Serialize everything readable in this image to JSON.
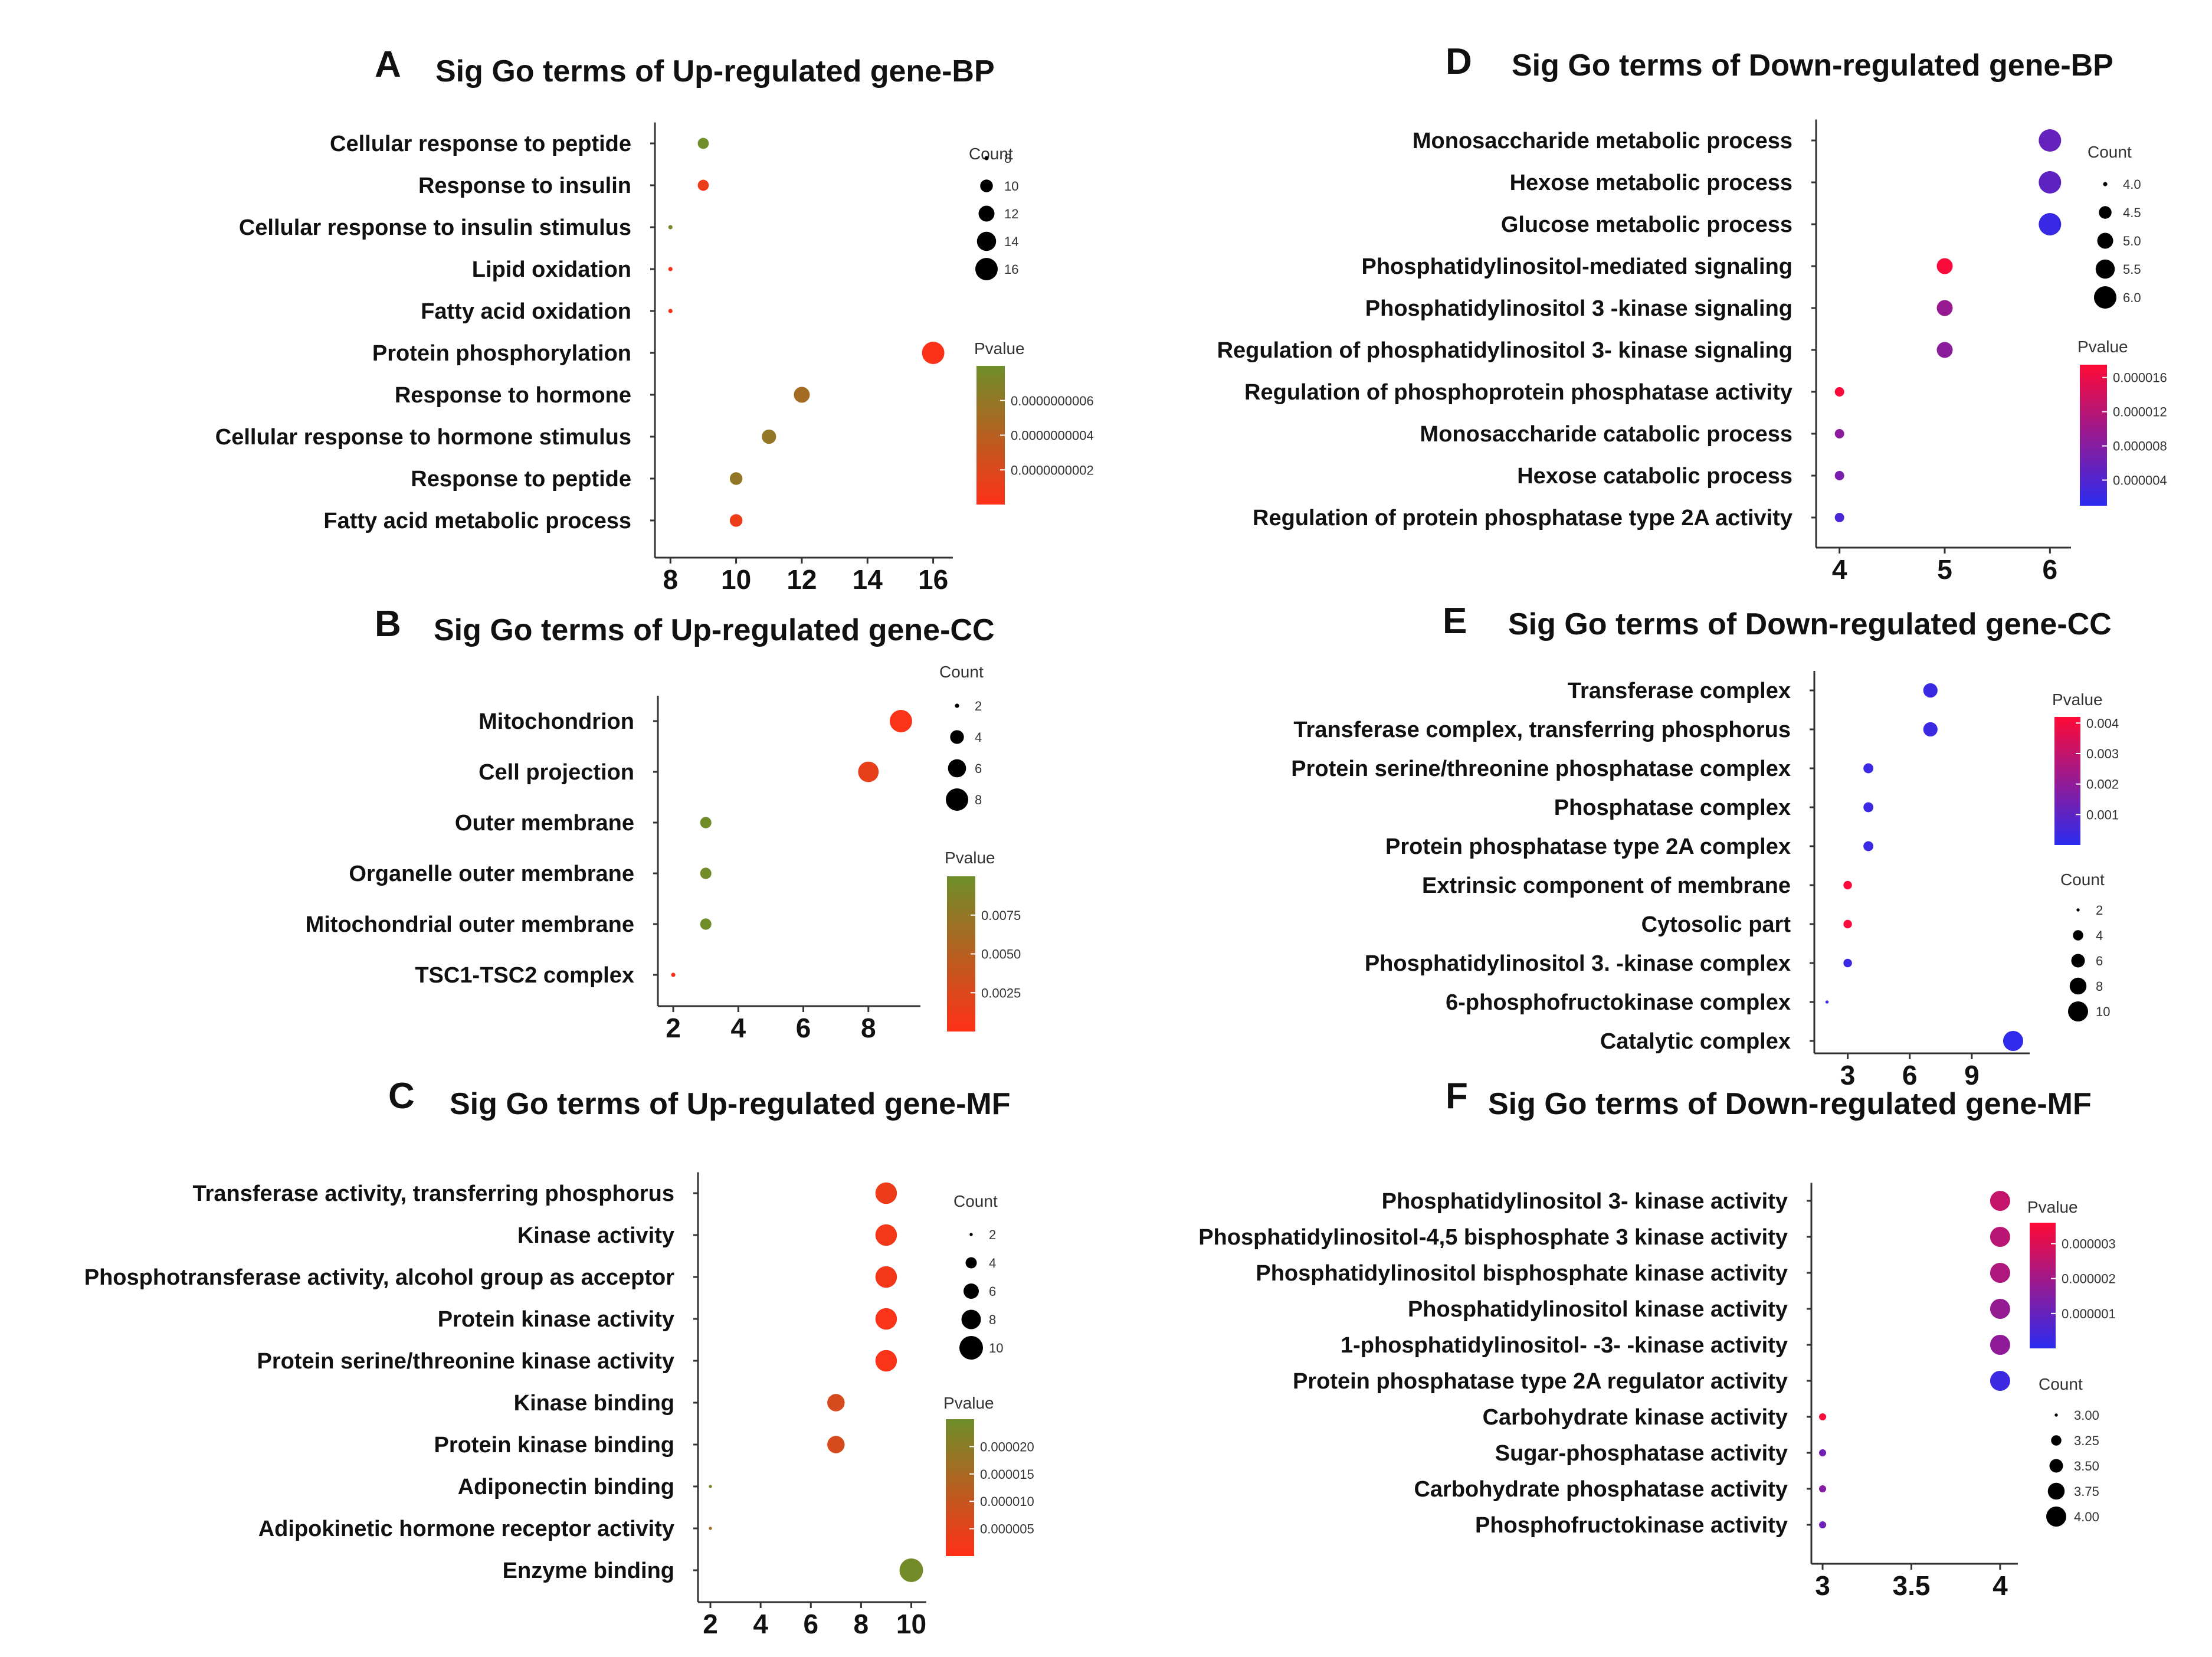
{
  "chart_data": [
    {
      "id": "A",
      "type": "scatter",
      "letter": "A",
      "title": "Sig Go terms of Up-regulated gene-BP",
      "terms": [
        "Cellular response to peptide",
        "Response to insulin",
        "Cellular response to insulin stimulus",
        "Lipid oxidation",
        "Fatty acid oxidation",
        "Protein phosphorylation",
        "Response to hormone",
        "Cellular response to hormone stimulus",
        "Response to peptide",
        "Fatty acid metabolic process"
      ],
      "x": [
        9,
        9,
        8,
        8,
        8,
        16,
        12,
        11,
        10,
        10
      ],
      "pvalue": [
        8e-10,
        1e-10,
        7e-10,
        1e-11,
        1e-11,
        2e-11,
        5e-10,
        6e-10,
        6e-10,
        1e-10
      ],
      "xlim": [
        7.6,
        16.6
      ],
      "xticks": [
        "8",
        "10",
        "12",
        "14",
        "16"
      ],
      "xtick_values": [
        8,
        10,
        12,
        14,
        16
      ],
      "count_legend": {
        "title": "Count",
        "labels": [
          "8",
          "10",
          "12",
          "14",
          "16"
        ],
        "values": [
          8,
          10,
          12,
          14,
          16
        ],
        "range": [
          8,
          16
        ]
      },
      "pvalue_legend": {
        "title": "Pvalue",
        "labels": [
          "0.0000000006",
          "0.0000000004",
          "0.0000000002"
        ],
        "values": [
          6e-10,
          4e-10,
          2e-10
        ],
        "range": [
          0,
          8e-10
        ],
        "colors": [
          "#ff3018",
          "#6e8f2a"
        ]
      }
    },
    {
      "id": "B",
      "type": "scatter",
      "letter": "B",
      "title": "Sig Go terms of Up-regulated gene-CC",
      "terms": [
        "Mitochondrion",
        "Cell projection",
        "Outer membrane",
        "Organelle outer membrane",
        "Mitochondrial outer membrane",
        "TSC1-TSC2 complex"
      ],
      "x": [
        9,
        8,
        3,
        3,
        3,
        2
      ],
      "pvalue": [
        0.0003,
        0.0016,
        0.0098,
        0.0098,
        0.0098,
        0.0001
      ],
      "xlim": [
        1.6,
        9.6
      ],
      "xticks": [
        "2",
        "4",
        "6",
        "8"
      ],
      "xtick_values": [
        2,
        4,
        6,
        8
      ],
      "count_legend": {
        "title": "Count",
        "labels": [
          "2",
          "4",
          "6",
          "8"
        ],
        "values": [
          2,
          4,
          6,
          8
        ],
        "range": [
          2,
          9
        ]
      },
      "pvalue_legend": {
        "title": "Pvalue",
        "labels": [
          "0.0075",
          "0.0050",
          "0.0025"
        ],
        "values": [
          0.0075,
          0.005,
          0.0025
        ],
        "range": [
          0,
          0.01
        ],
        "colors": [
          "#ff3018",
          "#6e8f2a"
        ]
      }
    },
    {
      "id": "C",
      "type": "scatter",
      "letter": "C",
      "title": "Sig Go terms of Up-regulated gene-MF",
      "terms": [
        "Transferase activity, transferring phosphorus",
        "Kinase activity",
        "Phosphotransferase activity, alcohol group as acceptor",
        "Protein kinase activity",
        "Protein serine/threonine kinase activity",
        "Kinase binding",
        "Protein kinase binding",
        "Adiponectin binding",
        "Adipokinetic hormone receptor activity",
        "Enzyme binding"
      ],
      "x": [
        9,
        9,
        9,
        9,
        9,
        7,
        7,
        2,
        2,
        10
      ],
      "pvalue": [
        3e-06,
        2e-06,
        2e-06,
        1e-06,
        1e-06,
        7e-06,
        7e-06,
        2.2e-05,
        1.5e-05,
        2.4e-05
      ],
      "xlim": [
        1.6,
        10.6
      ],
      "xticks": [
        "2",
        "4",
        "6",
        "8",
        "10"
      ],
      "xtick_values": [
        2,
        4,
        6,
        8,
        10
      ],
      "count_legend": {
        "title": "Count",
        "labels": [
          "2",
          "4",
          "6",
          "8",
          "10"
        ],
        "values": [
          2,
          4,
          6,
          8,
          10
        ],
        "range": [
          2,
          10
        ]
      },
      "pvalue_legend": {
        "title": "Pvalue",
        "labels": [
          "0.000020",
          "0.000015",
          "0.000010",
          "0.000005"
        ],
        "values": [
          2e-05,
          1.5e-05,
          1e-05,
          5e-06
        ],
        "range": [
          0,
          2.5e-05
        ],
        "colors": [
          "#ff3018",
          "#6e8f2a"
        ]
      }
    },
    {
      "id": "D",
      "type": "scatter",
      "letter": "D",
      "title": "Sig Go terms of Down-regulated gene-BP",
      "terms": [
        "Monosaccharide metabolic process",
        "Hexose metabolic process",
        "Glucose metabolic process",
        "Phosphatidylinositol-mediated signaling",
        "Phosphatidylinositol 3 -kinase signaling",
        "Regulation of phosphatidylinositol 3- kinase signaling",
        "Regulation of phosphoprotein phosphatase activity",
        "Monosaccharide catabolic process",
        "Hexose catabolic process",
        "Regulation of protein phosphatase type 2A activity"
      ],
      "x": [
        6,
        6,
        6,
        5,
        5,
        5,
        4,
        4,
        4,
        4
      ],
      "pvalue": [
        5.5e-06,
        5e-06,
        2e-06,
        1.7e-05,
        9.5e-06,
        8.5e-06,
        1.7e-05,
        8.5e-06,
        7e-06,
        3.5e-06
      ],
      "xlim": [
        3.8,
        6.2
      ],
      "xticks": [
        "4",
        "5",
        "6"
      ],
      "xtick_values": [
        4,
        5,
        6
      ],
      "count_legend": {
        "title": "Count",
        "labels": [
          "4.0",
          "4.5",
          "5.0",
          "5.5",
          "6.0"
        ],
        "values": [
          4,
          4.5,
          5,
          5.5,
          6
        ],
        "range": [
          4,
          6
        ]
      },
      "pvalue_legend": {
        "title": "Pvalue",
        "labels": [
          "0.000016",
          "0.000012",
          "0.000008",
          "0.000004"
        ],
        "values": [
          1.6e-05,
          1.2e-05,
          8e-06,
          4e-06
        ],
        "range": [
          1e-06,
          1.75e-05
        ],
        "colors": [
          "#2b2bf0",
          "#ff0a36"
        ]
      }
    },
    {
      "id": "E",
      "type": "scatter",
      "letter": "E",
      "title": "Sig Go terms of Down-regulated gene-CC",
      "terms": [
        "Transferase complex",
        "Transferase complex, transferring phosphorus",
        "Protein serine/threonine phosphatase complex",
        "Phosphatase complex",
        "Protein phosphatase type 2A complex",
        "Extrinsic component of membrane",
        "Cytosolic part",
        "Phosphatidylinositol 3. -kinase complex",
        "6-phosphofructokinase complex",
        "Catalytic complex"
      ],
      "x": [
        7,
        7,
        4,
        4,
        4,
        3,
        3,
        3,
        2,
        11
      ],
      "pvalue": [
        0.0003,
        0.0003,
        0.0003,
        0.0003,
        0.0003,
        0.0041,
        0.0041,
        0.0003,
        0.0003,
        0.0001
      ],
      "xlim": [
        1.5,
        11.8
      ],
      "xticks": [
        "3",
        "6",
        "9"
      ],
      "xtick_values": [
        3,
        6,
        9
      ],
      "count_legend": {
        "title": "Count",
        "labels": [
          "2",
          "4",
          "6",
          "8",
          "10"
        ],
        "values": [
          2,
          4,
          6,
          8,
          10
        ],
        "range": [
          2,
          11
        ]
      },
      "pvalue_legend": {
        "title": "Pvalue",
        "labels": [
          "0.004",
          "0.003",
          "0.002",
          "0.001"
        ],
        "values": [
          0.004,
          0.003,
          0.002,
          0.001
        ],
        "range": [
          0,
          0.0042
        ],
        "colors": [
          "#2b2bf0",
          "#ff0a36"
        ]
      }
    },
    {
      "id": "F",
      "type": "scatter",
      "letter": "F",
      "title": "Sig Go terms of Down-regulated gene-MF",
      "terms": [
        "Phosphatidylinositol 3- kinase activity",
        "Phosphatidylinositol-4,5 bisphosphate 3 kinase activity",
        "Phosphatidylinositol bisphosphate kinase activity",
        "Phosphatidylinositol kinase activity",
        "1-phosphatidylinositol- -3- -kinase activity",
        "Protein phosphatase type 2A regulator activity",
        "Carbohydrate kinase activity",
        "Sugar-phosphatase activity",
        "Carbohydrate phosphatase activity",
        "Phosphofructokinase activity"
      ],
      "x": [
        4,
        4,
        4,
        4,
        4,
        4,
        3,
        3,
        3,
        3
      ],
      "pvalue": [
        2.6e-06,
        2.4e-06,
        2.2e-06,
        1.8e-06,
        1.7e-06,
        3e-07,
        3.5e-06,
        1.2e-06,
        1.5e-06,
        1.1e-06
      ],
      "xlim": [
        2.95,
        4.1
      ],
      "xticks": [
        "3",
        "3.5",
        "4"
      ],
      "xtick_values": [
        3,
        3.5,
        4
      ],
      "count_legend": {
        "title": "Count",
        "labels": [
          "3.00",
          "3.25",
          "3.50",
          "3.75",
          "4.00"
        ],
        "values": [
          3,
          3.25,
          3.5,
          3.75,
          4
        ],
        "range": [
          3,
          4
        ]
      },
      "pvalue_legend": {
        "title": "Pvalue",
        "labels": [
          "0.000003",
          "0.000002",
          "0.000001"
        ],
        "values": [
          3e-06,
          2e-06,
          1e-06
        ],
        "range": [
          0,
          3.6e-06
        ],
        "colors": [
          "#2b2bf0",
          "#ff0a36"
        ]
      }
    }
  ]
}
